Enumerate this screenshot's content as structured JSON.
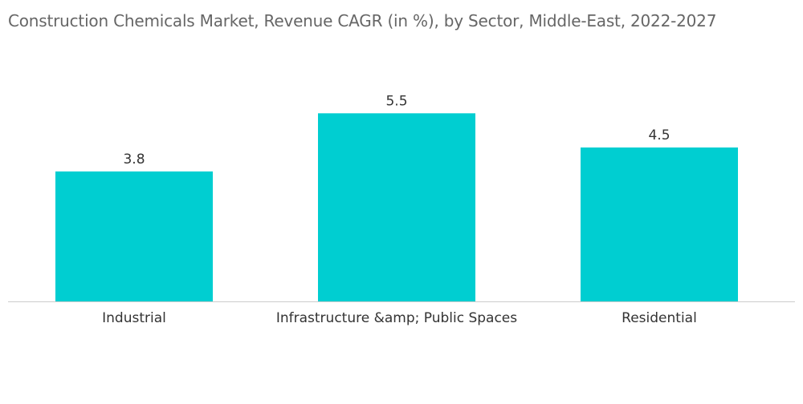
{
  "chart_data": {
    "type": "bar",
    "title": "Construction Chemicals Market, Revenue CAGR (in %), by Sector, Middle-East, 2022-2027",
    "categories": [
      "Industrial",
      "Infrastructure &amp; Public Spaces",
      "Residential"
    ],
    "values": [
      3.8,
      5.5,
      4.5
    ],
    "value_labels": [
      "3.8",
      "5.5",
      "4.5"
    ],
    "xlabel": "",
    "ylabel": "",
    "ylim": [
      0,
      6.0
    ],
    "grid": false,
    "legend": "none",
    "bar_color": "#00CED1",
    "axis_color": "#cccccc"
  }
}
